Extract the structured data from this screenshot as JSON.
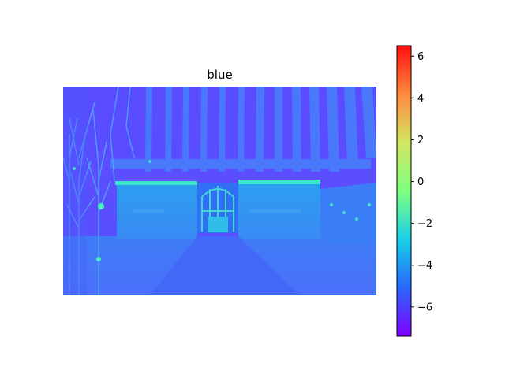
{
  "chart_data": {
    "type": "heatmap",
    "title": "blue",
    "image_description_label": "",
    "colormap": "rainbow",
    "colorbar": {
      "min": -7.4,
      "max": 6.5,
      "ticks": [
        6,
        4,
        2,
        0,
        -2,
        -4,
        -6
      ],
      "tick_labels": [
        "6",
        "4",
        "2",
        "0",
        "−2",
        "−4",
        "−6"
      ]
    },
    "axes_visible": false,
    "grid": false
  }
}
